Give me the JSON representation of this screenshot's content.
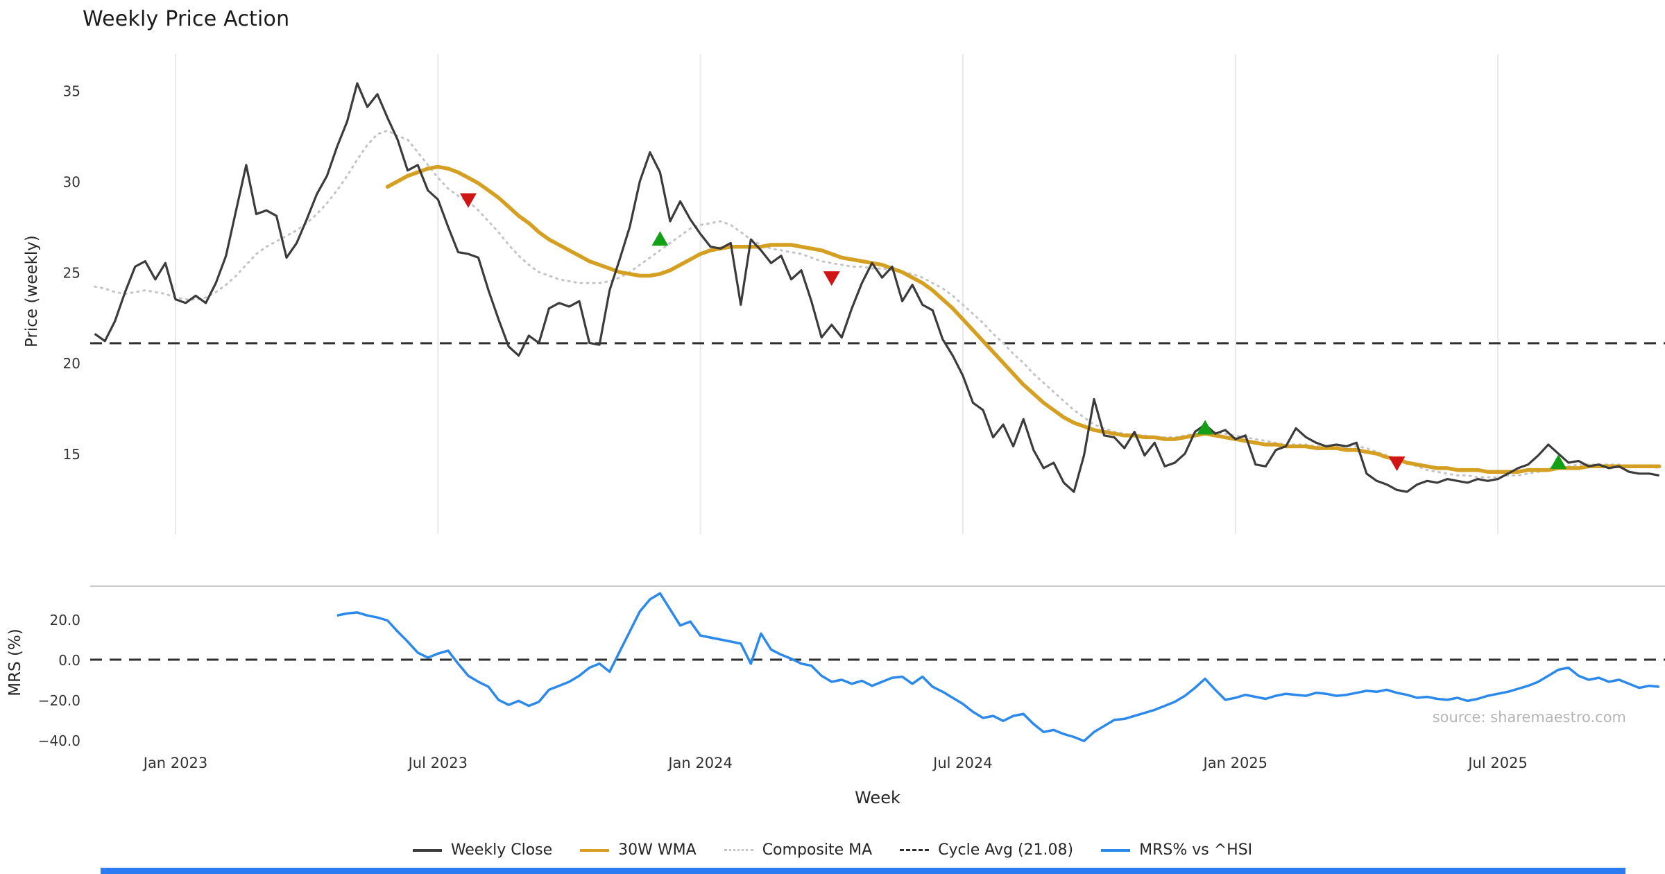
{
  "source": "source: sharemaestro.com",
  "decor": {
    "bottom_bar_color": "#2b7cf2"
  },
  "legend": {
    "items": [
      {
        "label": "Weekly Close",
        "color": "#3b3b3b",
        "line": "solid"
      },
      {
        "label": "30W WMA",
        "color": "#d5a021",
        "line": "solid"
      },
      {
        "label": "Composite MA",
        "color": "#c4c4c4",
        "line": "dotted"
      },
      {
        "label": "Cycle Avg (21.08)",
        "color": "#2d2d2d",
        "line": "dashed"
      },
      {
        "label": "MRS% vs ^HSI",
        "color": "#2a89ea",
        "line": "solid"
      }
    ]
  },
  "chart_data": {
    "type": "line",
    "title": "Weekly Price Action",
    "grid_color": "#e8e8e8",
    "cycle_avg": 21.08,
    "cycle_color": "#2d2d2d",
    "signal_colors": {
      "buy": "#14a014",
      "sell": "#d01515"
    },
    "x_axis": {
      "label": "Week",
      "unit": "week-index (weekly data, Nov 2022 - Oct 2025)",
      "tick_weeks": [
        8,
        34,
        60,
        86,
        113,
        139
      ],
      "tick_labels": [
        "Jan 2023",
        "Jul 2023",
        "Jan 2024",
        "Jul 2024",
        "Jan 2025",
        "Jul 2025"
      ]
    },
    "price_axis": {
      "label": "Price (weekly)",
      "range": [
        10.5,
        37.0
      ],
      "ticks": [
        {
          "value": 35,
          "label": "35"
        },
        {
          "value": 30,
          "label": "30"
        },
        {
          "value": 25,
          "label": "25"
        },
        {
          "value": 20,
          "label": "20"
        },
        {
          "value": 15,
          "label": "15"
        }
      ]
    },
    "mrs_axis": {
      "label": "MRS (%)",
      "range": [
        -44.5,
        36.5
      ],
      "ticks": [
        {
          "value": 20,
          "label": "20.0"
        },
        {
          "value": 0,
          "label": "0.0"
        },
        {
          "value": -20,
          "label": "−20.0"
        },
        {
          "value": -40,
          "label": "−40.0"
        }
      ]
    },
    "series": [
      {
        "id": "close",
        "name": "Weekly Close",
        "panel": "price",
        "color": "#3b3b3b",
        "style": "solid",
        "values": [
          21.6,
          21.2,
          22.3,
          23.9,
          25.3,
          25.6,
          24.6,
          25.5,
          23.5,
          23.3,
          23.7,
          23.3,
          24.4,
          25.9,
          28.4,
          30.9,
          28.2,
          28.4,
          28.1,
          25.8,
          26.6,
          27.9,
          29.3,
          30.3,
          31.9,
          33.3,
          35.4,
          34.1,
          34.8,
          33.5,
          32.3,
          30.6,
          30.9,
          29.5,
          29.0,
          27.5,
          26.1,
          26.0,
          25.8,
          24.0,
          22.4,
          20.9,
          20.4,
          21.5,
          21.1,
          23.0,
          23.3,
          23.1,
          23.4,
          21.1,
          21.0,
          24.0,
          25.7,
          27.5,
          30.0,
          31.6,
          30.5,
          27.8,
          28.9,
          27.9,
          27.1,
          26.4,
          26.3,
          26.6,
          23.2,
          26.8,
          26.2,
          25.5,
          25.9,
          24.6,
          25.1,
          23.4,
          21.4,
          22.1,
          21.4,
          23.0,
          24.4,
          25.5,
          24.7,
          25.3,
          23.4,
          24.3,
          23.2,
          22.9,
          21.3,
          20.4,
          19.3,
          17.8,
          17.4,
          15.9,
          16.6,
          15.4,
          16.9,
          15.2,
          14.2,
          14.5,
          13.4,
          12.9,
          14.9,
          18.0,
          16.0,
          15.9,
          15.3,
          16.2,
          14.9,
          15.6,
          14.3,
          14.5,
          15.0,
          16.2,
          16.6,
          16.1,
          16.3,
          15.8,
          16.0,
          14.4,
          14.3,
          15.2,
          15.4,
          16.4,
          15.9,
          15.6,
          15.4,
          15.5,
          15.4,
          15.6,
          13.9,
          13.5,
          13.3,
          13.0,
          12.9,
          13.3,
          13.5,
          13.4,
          13.6,
          13.5,
          13.4,
          13.6,
          13.5,
          13.6,
          13.9,
          14.2,
          14.4,
          14.9,
          15.5,
          15.0,
          14.5,
          14.6,
          14.3,
          14.4,
          14.2,
          14.3,
          14.0,
          13.9,
          13.9,
          13.8
        ]
      },
      {
        "id": "wma30",
        "name": "30W WMA",
        "panel": "price",
        "color": "#d5a021",
        "style": "solid",
        "values": [
          null,
          null,
          null,
          null,
          null,
          null,
          null,
          null,
          null,
          null,
          null,
          null,
          null,
          null,
          null,
          null,
          null,
          null,
          null,
          null,
          null,
          null,
          null,
          null,
          null,
          null,
          null,
          null,
          null,
          29.7,
          30.0,
          30.3,
          30.5,
          30.7,
          30.8,
          30.7,
          30.5,
          30.2,
          29.9,
          29.5,
          29.1,
          28.6,
          28.1,
          27.7,
          27.2,
          26.8,
          26.5,
          26.2,
          25.9,
          25.6,
          25.4,
          25.2,
          25.0,
          24.9,
          24.8,
          24.8,
          24.9,
          25.1,
          25.4,
          25.7,
          26.0,
          26.2,
          26.3,
          26.4,
          26.4,
          26.4,
          26.4,
          26.5,
          26.5,
          26.5,
          26.4,
          26.3,
          26.2,
          26.0,
          25.8,
          25.7,
          25.6,
          25.5,
          25.4,
          25.2,
          25.0,
          24.7,
          24.4,
          24.0,
          23.5,
          23.0,
          22.4,
          21.8,
          21.2,
          20.6,
          20.0,
          19.4,
          18.8,
          18.3,
          17.8,
          17.4,
          17.0,
          16.7,
          16.5,
          16.3,
          16.2,
          16.1,
          16.0,
          16.0,
          15.9,
          15.9,
          15.8,
          15.8,
          15.9,
          16.0,
          16.1,
          16.0,
          15.9,
          15.8,
          15.7,
          15.6,
          15.5,
          15.5,
          15.4,
          15.4,
          15.4,
          15.3,
          15.3,
          15.3,
          15.2,
          15.2,
          15.1,
          15.0,
          14.8,
          14.7,
          14.5,
          14.4,
          14.3,
          14.2,
          14.2,
          14.1,
          14.1,
          14.1,
          14.0,
          14.0,
          14.0,
          14.0,
          14.1,
          14.1,
          14.1,
          14.2,
          14.2,
          14.2,
          14.3,
          14.3,
          14.3,
          14.3,
          14.3,
          14.3,
          14.3,
          14.3
        ]
      },
      {
        "id": "composite",
        "name": "Composite MA",
        "panel": "price",
        "color": "#c4c4c4",
        "style": "dotted",
        "values": [
          24.2,
          24.1,
          23.9,
          23.8,
          23.9,
          24.0,
          23.9,
          23.8,
          23.6,
          23.5,
          23.5,
          23.6,
          23.9,
          24.3,
          24.8,
          25.4,
          26.0,
          26.4,
          26.7,
          27.0,
          27.3,
          27.7,
          28.2,
          28.8,
          29.5,
          30.3,
          31.2,
          32.0,
          32.6,
          32.8,
          32.5,
          32.3,
          31.6,
          30.9,
          30.2,
          29.6,
          29.2,
          28.9,
          28.4,
          27.8,
          27.2,
          26.5,
          25.9,
          25.4,
          25.0,
          24.8,
          24.6,
          24.5,
          24.4,
          24.4,
          24.4,
          24.5,
          24.7,
          25.0,
          25.4,
          25.8,
          26.2,
          26.6,
          27.0,
          27.4,
          27.6,
          27.7,
          27.8,
          27.6,
          27.2,
          26.8,
          26.5,
          26.3,
          26.2,
          26.1,
          26.0,
          25.8,
          25.6,
          25.5,
          25.4,
          25.3,
          25.3,
          25.2,
          25.2,
          25.1,
          25.0,
          24.9,
          24.7,
          24.4,
          24.1,
          23.7,
          23.2,
          22.7,
          22.2,
          21.6,
          21.1,
          20.5,
          20.0,
          19.4,
          18.9,
          18.4,
          17.9,
          17.4,
          17.0,
          16.6,
          16.4,
          16.2,
          16.1,
          16.0,
          16.0,
          15.9,
          15.9,
          15.9,
          16.0,
          16.1,
          16.2,
          16.2,
          16.1,
          16.0,
          15.9,
          15.8,
          15.7,
          15.6,
          15.5,
          15.5,
          15.5,
          15.4,
          15.4,
          15.4,
          15.4,
          15.4,
          15.3,
          15.1,
          14.9,
          14.7,
          14.5,
          14.3,
          14.1,
          14.0,
          13.9,
          13.8,
          13.8,
          13.7,
          13.7,
          13.7,
          13.8,
          13.8,
          13.9,
          14.0,
          14.1,
          14.2,
          14.3,
          14.4,
          14.4,
          14.4,
          14.4,
          14.4,
          14.3,
          14.3,
          14.3,
          14.2
        ]
      },
      {
        "id": "mrs",
        "name": "MRS% vs ^HSI",
        "panel": "mrs",
        "color": "#2a89ea",
        "style": "solid",
        "values": [
          null,
          null,
          null,
          null,
          null,
          null,
          null,
          null,
          null,
          null,
          null,
          null,
          null,
          null,
          null,
          null,
          null,
          null,
          null,
          null,
          null,
          null,
          null,
          null,
          22.0,
          23.0,
          23.5,
          22.0,
          21.0,
          19.5,
          14.0,
          9.0,
          3.5,
          1.0,
          3.0,
          4.5,
          -2.0,
          -8.0,
          -11.0,
          -13.5,
          -20.0,
          -22.5,
          -20.5,
          -23.0,
          -21.0,
          -15.0,
          -13.0,
          -11.0,
          -8.0,
          -4.0,
          -2.0,
          -6.0,
          4.0,
          14.0,
          24.0,
          30.0,
          33.0,
          25.0,
          17.0,
          19.0,
          12.0,
          11.0,
          10.0,
          9.0,
          8.0,
          -2.0,
          13.0,
          5.0,
          2.5,
          0.5,
          -2.0,
          -3.0,
          -8.0,
          -11.0,
          -10.0,
          -12.0,
          -10.5,
          -13.0,
          -11.0,
          -9.0,
          -8.5,
          -12.0,
          -8.5,
          -13.5,
          -16.0,
          -19.0,
          -22.0,
          -26.0,
          -29.0,
          -28.0,
          -30.5,
          -28.0,
          -27.0,
          -32.0,
          -36.0,
          -35.0,
          -37.0,
          -38.5,
          -40.5,
          -36.0,
          -33.0,
          -30.0,
          -29.5,
          -28.0,
          -26.5,
          -25.0,
          -23.0,
          -21.0,
          -18.0,
          -14.0,
          -9.5,
          -15.0,
          -20.0,
          -19.0,
          -17.5,
          -18.5,
          -19.5,
          -18.0,
          -17.0,
          -17.5,
          -18.0,
          -16.5,
          -17.0,
          -18.0,
          -17.5,
          -16.5,
          -15.5,
          -16.0,
          -15.0,
          -16.5,
          -17.5,
          -19.0,
          -18.5,
          -19.5,
          -20.0,
          -19.0,
          -20.5,
          -19.5,
          -18.0,
          -17.0,
          -16.0,
          -14.5,
          -13.0,
          -11.0,
          -8.0,
          -5.0,
          -4.0,
          -8.0,
          -10.0,
          -9.0,
          -11.0,
          -10.0,
          -12.0,
          -14.0,
          -13.0,
          -13.5
        ]
      }
    ],
    "signals": [
      {
        "week": 37,
        "price": 29.0,
        "type": "sell"
      },
      {
        "week": 56,
        "price": 26.8,
        "type": "buy"
      },
      {
        "week": 73,
        "price": 24.7,
        "type": "sell"
      },
      {
        "week": 110,
        "price": 16.4,
        "type": "buy"
      },
      {
        "week": 129,
        "price": 14.5,
        "type": "sell"
      },
      {
        "week": 145,
        "price": 14.5,
        "type": "buy"
      }
    ]
  }
}
